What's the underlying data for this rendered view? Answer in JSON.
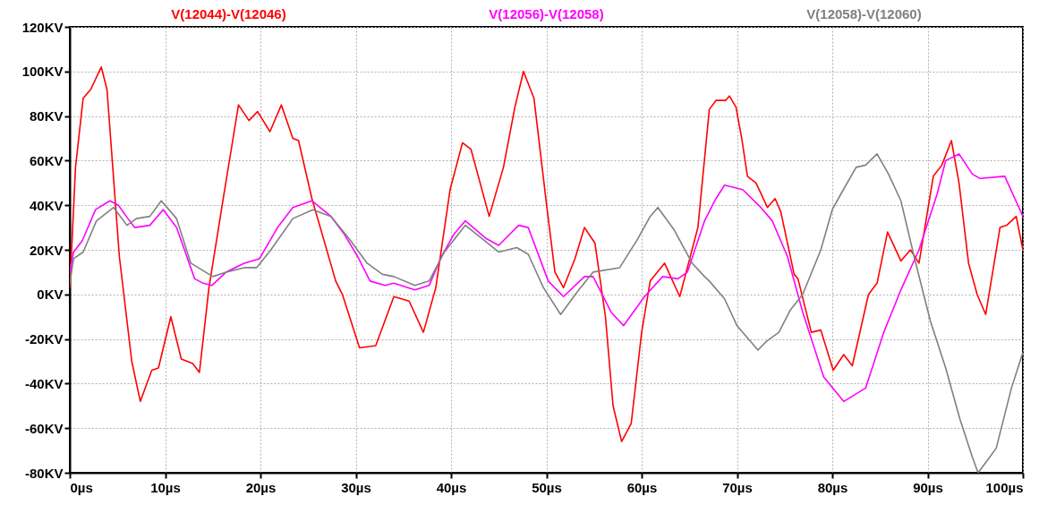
{
  "chart_data": {
    "type": "line",
    "legend": "top",
    "grid": true,
    "line_style": "solid",
    "xlim": [
      0,
      100
    ],
    "ylim": [
      -80,
      120
    ],
    "xticks": [
      {
        "value": 0,
        "label": "0µs"
      },
      {
        "value": 10,
        "label": "10µs"
      },
      {
        "value": 20,
        "label": "20µs"
      },
      {
        "value": 30,
        "label": "30µs"
      },
      {
        "value": 40,
        "label": "40µs"
      },
      {
        "value": 50,
        "label": "50µs"
      },
      {
        "value": 60,
        "label": "60µs"
      },
      {
        "value": 70,
        "label": "70µs"
      },
      {
        "value": 80,
        "label": "80µs"
      },
      {
        "value": 90,
        "label": "90µs"
      },
      {
        "value": 100,
        "label": "100µs"
      }
    ],
    "yticks": [
      {
        "value": -80,
        "label": "-80KV"
      },
      {
        "value": -60,
        "label": "-60KV"
      },
      {
        "value": -40,
        "label": "-40KV"
      },
      {
        "value": -20,
        "label": "-20KV"
      },
      {
        "value": 0,
        "label": "0KV"
      },
      {
        "value": 20,
        "label": "20KV"
      },
      {
        "value": 40,
        "label": "40KV"
      },
      {
        "value": 60,
        "label": "60KV"
      },
      {
        "value": 80,
        "label": "80KV"
      },
      {
        "value": 100,
        "label": "100KV"
      },
      {
        "value": 120,
        "label": "120KV"
      }
    ],
    "series": [
      {
        "name": "V(12044)-V(12046)",
        "color": "#ff0000",
        "x": [
          0,
          0.6,
          1.4,
          2.2,
          3.3,
          3.9,
          5.2,
          6.5,
          7.4,
          8.6,
          9.3,
          10.6,
          11.7,
          12.9,
          13.6,
          14.6,
          16.1,
          17.7,
          18.8,
          19.7,
          21,
          22.2,
          23.4,
          24,
          25.4,
          27.9,
          28.6,
          30.4,
          32.1,
          34,
          35.6,
          37.1,
          38.4,
          39.9,
          41.2,
          42.1,
          44,
          45.5,
          46.7,
          47.6,
          48.7,
          50,
          50.9,
          51.8,
          53,
          54,
          55.1,
          56.2,
          57,
          57.9,
          58.9,
          60,
          60.9,
          62.4,
          64,
          65.9,
          67.1,
          67.8,
          68.8,
          69.2,
          69.9,
          70.5,
          71.1,
          72,
          73.2,
          74,
          74.6,
          76,
          76.4,
          77.8,
          78.8,
          80.1,
          81.2,
          82.1,
          83.8,
          84.7,
          85.8,
          87.2,
          88.2,
          89.1,
          90.6,
          91.5,
          92.5,
          93.3,
          94.3,
          95.2,
          96.1,
          97.6,
          98.3,
          99.3,
          100
        ],
        "values": [
          3,
          57,
          88,
          92,
          102,
          92,
          17,
          -30,
          -48,
          -34,
          -33,
          -10,
          -29,
          -31,
          -35,
          3,
          43,
          85,
          78,
          82,
          73,
          85,
          70,
          69,
          43,
          6,
          0,
          -24,
          -23,
          -1,
          -3,
          -17,
          3,
          47,
          68,
          65,
          35,
          57,
          84,
          100,
          88,
          41,
          10,
          3,
          16,
          30,
          23,
          -10,
          -50,
          -66,
          -58,
          -17,
          6,
          14,
          -1,
          30,
          83,
          87,
          87,
          89,
          84,
          70,
          53,
          50,
          39,
          43,
          37,
          9,
          7,
          -17,
          -16,
          -34,
          -27,
          -32,
          0,
          5,
          28,
          15,
          20,
          14,
          53,
          58,
          69,
          50,
          14,
          0,
          -9,
          30,
          31,
          35,
          20
        ]
      },
      {
        "name": "V(12056)-V(12058)",
        "color": "#ff00ff",
        "x": [
          0,
          0.4,
          1.3,
          2.7,
          4.2,
          5.1,
          6.1,
          6.8,
          8.4,
          9.8,
          11.2,
          13.1,
          14,
          14.9,
          16.4,
          18.3,
          19.9,
          21.8,
          23.4,
          25.4,
          27.4,
          28.8,
          30.2,
          31.5,
          33.1,
          34,
          36.2,
          37.7,
          39,
          40.3,
          41.5,
          43.7,
          45,
          47.1,
          48.1,
          50.2,
          51.8,
          54,
          54.9,
          56.8,
          58.1,
          60.3,
          62.2,
          63.8,
          64.8,
          66.6,
          67.8,
          68.7,
          70.6,
          72.5,
          73.7,
          75.3,
          76.9,
          79.1,
          81.2,
          83.5,
          85.4,
          87.2,
          89.1,
          91,
          91.9,
          93.3,
          94.7,
          95.5,
          98.1,
          100
        ],
        "values": [
          10,
          19,
          24,
          38,
          42,
          40,
          34,
          30,
          31,
          38,
          30,
          7,
          5,
          4,
          10,
          14,
          16,
          30,
          39,
          42,
          35,
          27,
          17,
          6,
          4,
          5,
          2,
          4,
          17,
          27,
          33,
          25,
          22,
          31,
          30,
          6,
          -1,
          8,
          8,
          -8,
          -14,
          -1,
          8,
          7,
          10,
          33,
          43,
          49,
          47,
          39,
          33,
          17,
          -8,
          -37,
          -48,
          -42,
          -17,
          2,
          20,
          45,
          60,
          63,
          54,
          52,
          53,
          35
        ]
      },
      {
        "name": "V(12058)-V(12060)",
        "color": "#808080",
        "x": [
          0,
          0.4,
          1.4,
          2.8,
          4.6,
          6,
          7,
          8.4,
          9.6,
          11.2,
          12.7,
          15,
          16.4,
          18.3,
          19.6,
          21.1,
          23.4,
          25.5,
          27.4,
          29.3,
          31.2,
          32.8,
          34,
          36.2,
          37.7,
          39.3,
          41.5,
          45,
          46.9,
          48.1,
          49.7,
          51.5,
          53.4,
          54.9,
          57.7,
          59.6,
          60.9,
          61.7,
          63.4,
          65.3,
          66.6,
          67.1,
          68.7,
          70,
          71.6,
          72.2,
          73.1,
          74.4,
          75.6,
          76.9,
          78.8,
          80,
          80.9,
          82.5,
          83.5,
          84.7,
          85.9,
          87.2,
          88.7,
          90.3,
          91.9,
          93.4,
          94.7,
          95.3,
          96,
          97.2,
          98.8,
          100
        ],
        "values": [
          5,
          16,
          19,
          33,
          39,
          31,
          34,
          35,
          42,
          34,
          14,
          8,
          10,
          12,
          12,
          20,
          34,
          38,
          35,
          25,
          14,
          9,
          8,
          4,
          6,
          19,
          31,
          19,
          21,
          18,
          3,
          -9,
          2,
          10,
          12,
          25,
          35,
          39,
          29,
          14,
          8,
          6,
          -2,
          -14,
          -22,
          -25,
          -21,
          -17,
          -7,
          0,
          20,
          38,
          45,
          57,
          58,
          63,
          54,
          42,
          15,
          -12,
          -33,
          -56,
          -73,
          -80,
          -76,
          -69,
          -42,
          -26
        ]
      }
    ]
  }
}
